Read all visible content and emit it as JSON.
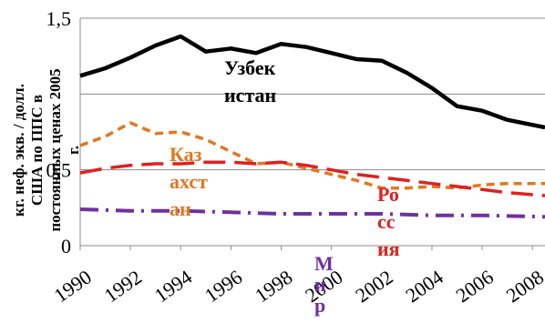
{
  "chart_data": {
    "type": "line",
    "title": "",
    "xlabel": "",
    "ylabel": "кг. неф. экв. / долл. США по ППС в постоянных ценах 2005 г.",
    "ylabel_lines": [
      "кг. неф. экв. / долл.",
      "США по ППС в",
      "постоянных ценах 2005",
      "г."
    ],
    "xlim": [
      1990,
      2008.5
    ],
    "ylim": [
      0,
      1.5
    ],
    "x_ticks": [
      1990,
      1992,
      1994,
      1996,
      1998,
      2000,
      2002,
      2004,
      2006,
      2008
    ],
    "y_ticks": [
      {
        "value": 0,
        "label": "0"
      },
      {
        "value": 0.5,
        "label": "0,5"
      },
      {
        "value": 1.0,
        "label": ""
      },
      {
        "value": 1.5,
        "label": "1,5"
      }
    ],
    "grid": {
      "horizontal": true,
      "vertical": false
    },
    "series": [
      {
        "name": "Узбекистан",
        "label_lines": [
          "Узбек",
          "истан"
        ],
        "color": "#000000",
        "dash": "solid",
        "x": [
          1990,
          1991,
          1992,
          1993,
          1994,
          1995,
          1996,
          1997,
          1998,
          1999,
          2000,
          2001,
          2002,
          2003,
          2004,
          2005,
          2006,
          2007,
          2008.5
        ],
        "values": [
          1.12,
          1.17,
          1.24,
          1.32,
          1.38,
          1.28,
          1.3,
          1.27,
          1.33,
          1.31,
          1.27,
          1.23,
          1.22,
          1.14,
          1.04,
          0.92,
          0.89,
          0.83,
          0.78
        ]
      },
      {
        "name": "Казахстан",
        "label_lines": [
          "Каз",
          "ахст",
          "ан"
        ],
        "color": "#E07820",
        "dash": "short",
        "x": [
          1990,
          1991,
          1992,
          1993,
          1994,
          1995,
          1996,
          1997,
          1998,
          1999,
          2000,
          2001,
          2002,
          2003,
          2004,
          2005,
          2006,
          2007,
          2008.5
        ],
        "values": [
          0.66,
          0.72,
          0.81,
          0.74,
          0.75,
          0.7,
          0.62,
          0.54,
          0.55,
          0.51,
          0.47,
          0.43,
          0.38,
          0.38,
          0.39,
          0.38,
          0.4,
          0.41,
          0.41
        ]
      },
      {
        "name": "Россия",
        "label_lines": [
          "Ро",
          "сс",
          "ия"
        ],
        "color": "#E02020",
        "dash": "long",
        "x": [
          1990,
          1991,
          1992,
          1993,
          1994,
          1995,
          1996,
          1997,
          1998,
          1999,
          2000,
          2001,
          2002,
          2003,
          2004,
          2005,
          2006,
          2007,
          2008.5
        ],
        "values": [
          0.48,
          0.51,
          0.53,
          0.54,
          0.54,
          0.55,
          0.55,
          0.54,
          0.55,
          0.53,
          0.5,
          0.47,
          0.45,
          0.43,
          0.41,
          0.39,
          0.37,
          0.35,
          0.33
        ]
      },
      {
        "name": "Мир",
        "label_lines": [
          "М",
          "и",
          "р"
        ],
        "color": "#7030A0",
        "dash": "dashdot",
        "x": [
          1990,
          1992,
          1994,
          1996,
          1998,
          2000,
          2002,
          2004,
          2006,
          2008.5
        ],
        "values": [
          0.24,
          0.23,
          0.23,
          0.22,
          0.21,
          0.21,
          0.21,
          0.2,
          0.2,
          0.19
        ]
      }
    ]
  }
}
